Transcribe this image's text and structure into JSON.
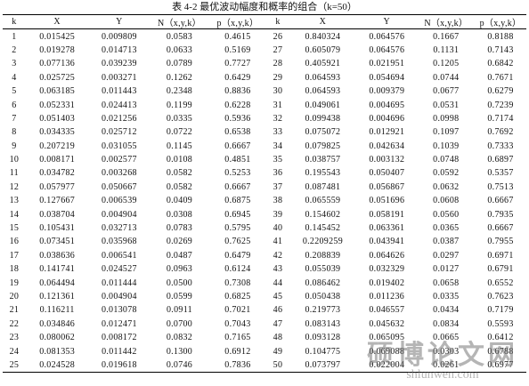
{
  "header": {
    "title": "表 4-2  最优波动幅度和概率的组合（k=50）"
  },
  "table": {
    "columns": [
      "k",
      "X",
      "Y",
      "N（x,y,k）",
      "p（x,y,k）",
      "k",
      "X",
      "Y",
      "N（x,y,k）",
      "p（x,y,k）"
    ],
    "rows": [
      [
        "1",
        "0.015425",
        "0.009809",
        "0.0583",
        "0.4615",
        "26",
        "0.840324",
        "0.064576",
        "0.1667",
        "0.8188"
      ],
      [
        "2",
        "0.019278",
        "0.014713",
        "0.0633",
        "0.5169",
        "27",
        "0.605079",
        "0.064576",
        "0.1131",
        "0.7143"
      ],
      [
        "3",
        "0.077136",
        "0.039239",
        "0.0789",
        "0.7727",
        "28",
        "0.405921",
        "0.021951",
        "0.1205",
        "0.6842"
      ],
      [
        "4",
        "0.025725",
        "0.003271",
        "0.1262",
        "0.6429",
        "29",
        "0.064593",
        "0.054694",
        "0.0744",
        "0.7671"
      ],
      [
        "5",
        "0.063185",
        "0.011443",
        "0.2348",
        "0.8836",
        "30",
        "0.064593",
        "0.009379",
        "0.0677",
        "0.6279"
      ],
      [
        "6",
        "0.052331",
        "0.024413",
        "0.1199",
        "0.6228",
        "31",
        "0.049061",
        "0.004695",
        "0.0531",
        "0.7239"
      ],
      [
        "7",
        "0.051403",
        "0.021256",
        "0.0335",
        "0.5936",
        "32",
        "0.099438",
        "0.004696",
        "0.0998",
        "0.7174"
      ],
      [
        "8",
        "0.034335",
        "0.025712",
        "0.0722",
        "0.6538",
        "33",
        "0.075072",
        "0.012921",
        "0.1097",
        "0.7692"
      ],
      [
        "9",
        "0.207219",
        "0.031055",
        "0.1145",
        "0.6667",
        "34",
        "0.079825",
        "0.042634",
        "0.1039",
        "0.7333"
      ],
      [
        "10",
        "0.008171",
        "0.002577",
        "0.0108",
        "0.4851",
        "35",
        "0.038757",
        "0.003132",
        "0.0748",
        "0.6897"
      ],
      [
        "11",
        "0.034782",
        "0.003268",
        "0.0582",
        "0.5253",
        "36",
        "0.195543",
        "0.050407",
        "0.0592",
        "0.5357"
      ],
      [
        "12",
        "0.057977",
        "0.050667",
        "0.0582",
        "0.6667",
        "37",
        "0.087481",
        "0.056867",
        "0.0632",
        "0.7513"
      ],
      [
        "13",
        "0.127667",
        "0.006539",
        "0.0409",
        "0.6875",
        "38",
        "0.065559",
        "0.051696",
        "0.0608",
        "0.6667"
      ],
      [
        "14",
        "0.038704",
        "0.004904",
        "0.0308",
        "0.6945",
        "39",
        "0.154602",
        "0.058191",
        "0.0560",
        "0.7935"
      ],
      [
        "15",
        "0.105431",
        "0.032713",
        "0.0783",
        "0.5795",
        "40",
        "0.145452",
        "0.063361",
        "0.0365",
        "0.6667"
      ],
      [
        "16",
        "0.073451",
        "0.035968",
        "0.0269",
        "0.7625",
        "41",
        "0.2209259",
        "0.043941",
        "0.0387",
        "0.7955"
      ],
      [
        "17",
        "0.038636",
        "0.006541",
        "0.0487",
        "0.6479",
        "42",
        "0.208839",
        "0.064626",
        "0.0297",
        "0.6971"
      ],
      [
        "18",
        "0.141741",
        "0.024527",
        "0.0963",
        "0.6124",
        "43",
        "0.055039",
        "0.032329",
        "0.0127",
        "0.6791"
      ],
      [
        "19",
        "0.064494",
        "0.011444",
        "0.0500",
        "0.7308",
        "44",
        "0.086462",
        "0.019402",
        "0.0658",
        "0.6552"
      ],
      [
        "20",
        "0.121361",
        "0.004904",
        "0.0599",
        "0.6825",
        "45",
        "0.050438",
        "0.011236",
        "0.0335",
        "0.7623"
      ],
      [
        "21",
        "0.116211",
        "0.013078",
        "0.0911",
        "0.7021",
        "46",
        "0.219773",
        "0.046557",
        "0.0434",
        "0.7179"
      ],
      [
        "22",
        "0.034846",
        "0.012471",
        "0.0700",
        "0.7043",
        "47",
        "0.083143",
        "0.045632",
        "0.0834",
        "0.5593"
      ],
      [
        "23",
        "0.080062",
        "0.008172",
        "0.0832",
        "0.7165",
        "48",
        "0.093128",
        "0.065095",
        "0.0665",
        "0.6412"
      ],
      [
        "24",
        "0.081353",
        "0.011442",
        "0.1300",
        "0.6912",
        "49",
        "0.104775",
        "0.069088",
        "0.0303",
        "0.6788"
      ],
      [
        "25",
        "0.024528",
        "0.019618",
        "0.0746",
        "0.7836",
        "50",
        "0.073797",
        "0.022004",
        "0.0261",
        "0.6977"
      ]
    ]
  },
  "watermark": {
    "brand": "硕博论文网",
    "url": "shlunwen.com"
  }
}
